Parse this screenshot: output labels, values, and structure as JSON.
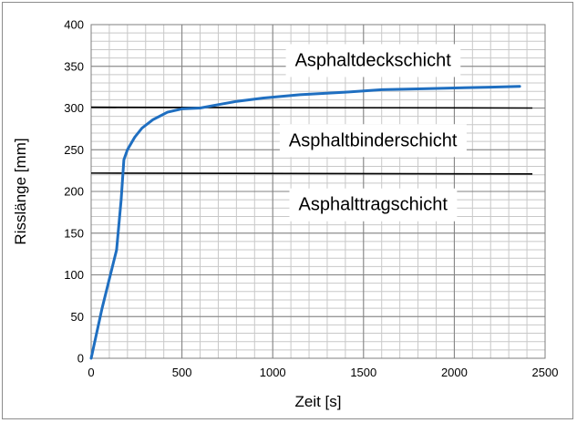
{
  "chart_data": {
    "type": "line",
    "title": "",
    "xlabel": "Zeit [s]",
    "ylabel": "Risslänge [mm]",
    "xlim": [
      0,
      2500
    ],
    "ylim": [
      0,
      400
    ],
    "x_ticks": [
      "0",
      "500",
      "1000",
      "1500",
      "2000",
      "2500"
    ],
    "y_ticks": [
      "0",
      "50",
      "100",
      "150",
      "200",
      "250",
      "300",
      "350",
      "400"
    ],
    "grid": true,
    "minor_grid_x_step": 100,
    "minor_grid_y_step": 10,
    "series": [
      {
        "name": "",
        "color": "#1f6fc1",
        "points": [
          [
            0,
            0
          ],
          [
            60,
            60
          ],
          [
            140,
            130
          ],
          [
            165,
            190
          ],
          [
            180,
            238
          ],
          [
            200,
            250
          ],
          [
            240,
            265
          ],
          [
            280,
            276
          ],
          [
            340,
            286
          ],
          [
            420,
            295
          ],
          [
            500,
            299
          ],
          [
            600,
            300
          ],
          [
            700,
            304
          ],
          [
            800,
            308
          ],
          [
            950,
            312
          ],
          [
            1150,
            316
          ],
          [
            1400,
            319
          ],
          [
            1600,
            322
          ],
          [
            1800,
            323
          ],
          [
            2000,
            324
          ],
          [
            2200,
            325
          ],
          [
            2360,
            326
          ]
        ]
      }
    ],
    "boundaries": [
      {
        "x": [
          0,
          2430
        ],
        "y": [
          301,
          300
        ]
      },
      {
        "x": [
          0,
          2430
        ],
        "y": [
          222,
          221
        ]
      }
    ],
    "annotations": [
      {
        "text": "Asphaltdeckschicht",
        "x": 1000,
        "y": 358
      },
      {
        "text": "Asphaltbinderschicht",
        "x": 1000,
        "y": 262
      },
      {
        "text": "Asphalttragschicht",
        "x": 1000,
        "y": 185
      }
    ]
  }
}
